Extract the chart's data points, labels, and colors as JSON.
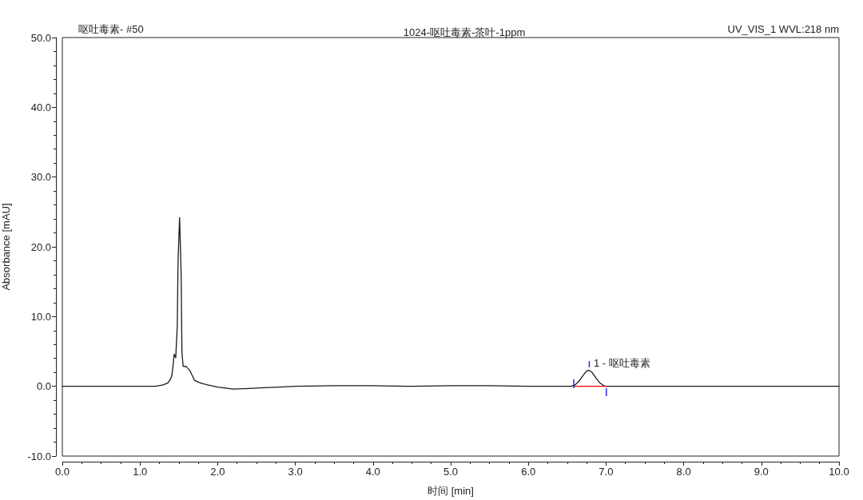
{
  "chart_data": {
    "type": "line",
    "title": "1024-呕吐毒素-茶叶-1ppm",
    "xlabel": "时间 [min]",
    "ylabel": "Absorbance [mAU]",
    "annotations": [
      "呕吐毒素- #50",
      "UV_VIS_1 WVL:218 nm",
      {
        "text": "1 - 呕吐毒素",
        "x": 6.78,
        "y": 2.3
      }
    ],
    "series": [
      {
        "color": "#1a1a1a",
        "x": [
          0,
          0.5,
          1.0,
          1.2,
          1.3,
          1.36,
          1.39,
          1.41,
          1.43,
          1.44,
          1.46,
          1.48,
          1.49,
          1.51,
          1.53,
          1.54,
          1.555,
          1.575,
          1.59,
          1.64,
          1.7,
          1.75,
          1.8,
          1.87,
          2.0,
          2.2,
          2.4,
          2.6,
          2.8,
          3.0,
          3.5,
          4.0,
          4.5,
          5.0,
          5.5,
          6.0,
          6.5,
          6.55,
          6.6,
          6.65,
          6.7,
          6.75,
          6.78,
          6.82,
          6.87,
          6.92,
          6.97,
          7.0,
          7.5,
          8.0,
          8.5,
          9.0,
          9.5,
          10.0
        ],
        "values": [
          0,
          0,
          0,
          0,
          0.2,
          0.5,
          1.0,
          1.5,
          3.4,
          4.6,
          4.1,
          8.7,
          18,
          24.2,
          16,
          4.9,
          2.9,
          2.8,
          2.9,
          2.3,
          0.9,
          0.6,
          0.4,
          0.2,
          -0.1,
          -0.4,
          -0.3,
          -0.2,
          -0.1,
          0,
          0.1,
          0.1,
          0,
          0.1,
          0.1,
          0,
          0,
          0,
          0.2,
          0.7,
          1.5,
          2.2,
          2.3,
          2.0,
          1.2,
          0.5,
          0.1,
          0,
          0,
          0,
          0,
          0,
          0,
          0
        ]
      },
      {
        "color": "#ff0000",
        "x": [
          6.58,
          7.0
        ],
        "values": [
          0,
          0
        ]
      }
    ],
    "xlim": [
      0,
      10
    ],
    "xticks": [
      {
        "value": 0,
        "label": "0.0"
      },
      {
        "value": 1,
        "label": "1.0"
      },
      {
        "value": 2,
        "label": "2.0"
      },
      {
        "value": 3,
        "label": "3.0"
      },
      {
        "value": 4,
        "label": "4.0"
      },
      {
        "value": 5,
        "label": "5.0"
      },
      {
        "value": 6,
        "label": "6.0"
      },
      {
        "value": 7,
        "label": "7.0"
      },
      {
        "value": 8,
        "label": "8.0"
      },
      {
        "value": 9,
        "label": "9.0"
      },
      {
        "value": 10,
        "label": "10.0"
      }
    ],
    "ylim": [
      -10,
      50
    ],
    "yticks": [
      {
        "value": -10,
        "label": "-10.0"
      },
      {
        "value": 0,
        "label": "0.0"
      },
      {
        "value": 10,
        "label": "10.0"
      },
      {
        "value": 20,
        "label": "20.0"
      },
      {
        "value": 30,
        "label": "30.0"
      },
      {
        "value": 40,
        "label": "40.0"
      },
      {
        "value": 50,
        "label": "50.0"
      }
    ],
    "grid": false,
    "marker": "none",
    "line_style": "solid"
  }
}
